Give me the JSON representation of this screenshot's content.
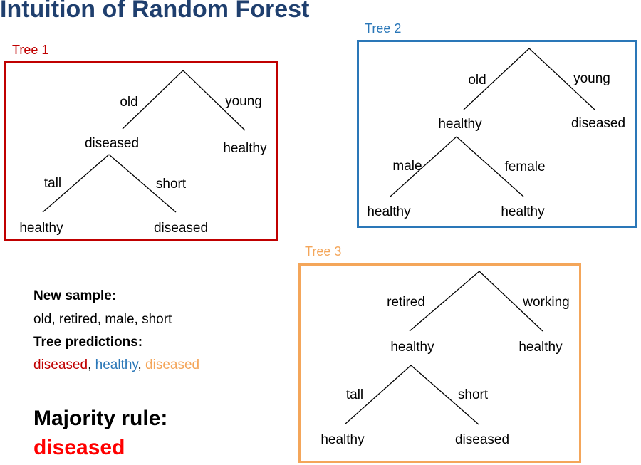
{
  "title": "Intuition of Random Forest",
  "colors": {
    "tree1": "#c00000",
    "tree2": "#2a77b8",
    "tree3": "#f4a65a",
    "title": "#1f3f6e",
    "majority": "#ff0000"
  },
  "tree1": {
    "label": "Tree 1",
    "root_left_edge": "old",
    "root_right_edge": "young",
    "left_node": "diseased",
    "right_leaf": "healthy",
    "sub_left_edge": "tall",
    "sub_right_edge": "short",
    "leaf_left": "healthy",
    "leaf_right": "diseased"
  },
  "tree2": {
    "label": "Tree 2",
    "root_left_edge": "old",
    "root_right_edge": "young",
    "left_node": "healthy",
    "right_leaf": "diseased",
    "sub_left_edge": "male",
    "sub_right_edge": "female",
    "leaf_left": "healthy",
    "leaf_right": "healthy"
  },
  "tree3": {
    "label": "Tree 3",
    "root_left_edge": "retired",
    "root_right_edge": "working",
    "left_node": "healthy",
    "right_leaf": "healthy",
    "sub_left_edge": "tall",
    "sub_right_edge": "short",
    "leaf_left": "healthy",
    "leaf_right": "diseased"
  },
  "sample": {
    "heading": "New sample:",
    "values": "old, retired, male, short",
    "pred_heading": "Tree predictions:",
    "pred1": "diseased",
    "sep1": ", ",
    "pred2": "healthy",
    "sep2": ", ",
    "pred3": "diseased"
  },
  "majority": {
    "label": "Majority rule:",
    "value": "diseased"
  }
}
